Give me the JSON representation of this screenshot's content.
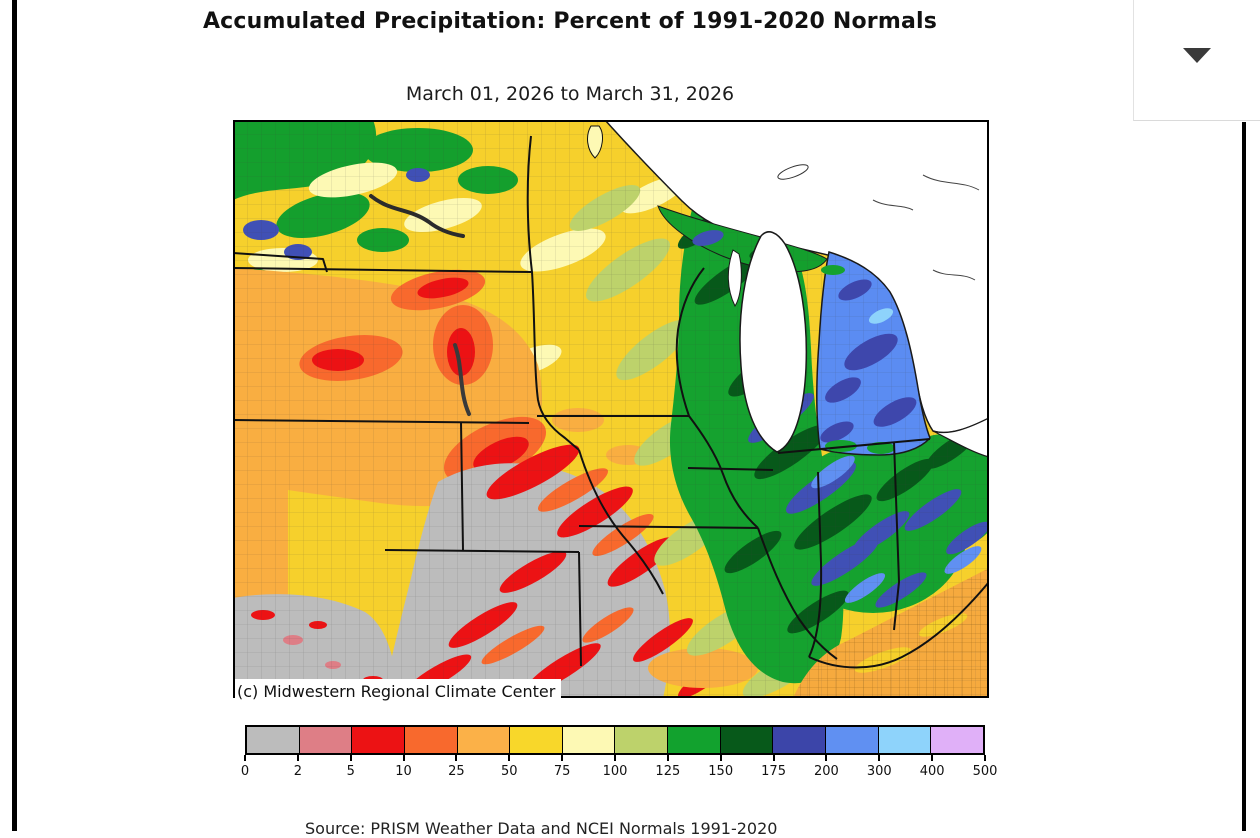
{
  "header": {
    "title": "Accumulated Precipitation: Percent of 1991-2020 Normals",
    "subtitle": "March 01, 2026 to March 31, 2026"
  },
  "map": {
    "attribution": "(c) Midwestern Regional Climate Center",
    "type": "choropleth",
    "region": "Midwestern United States and Great Lakes",
    "units": "percent of normal precipitation"
  },
  "legend": {
    "tick_labels": [
      "0",
      "2",
      "5",
      "10",
      "25",
      "50",
      "75",
      "100",
      "125",
      "150",
      "175",
      "200",
      "300",
      "400",
      "500"
    ],
    "colors": [
      "#bcbcbc",
      "#de7e86",
      "#ec1214",
      "#f8692d",
      "#fbb148",
      "#f8d72a",
      "#fdf9b4",
      "#bdd26b",
      "#12a22e",
      "#07591a",
      "#3c45a9",
      "#6090f2",
      "#8ed3fb",
      "#e0b0f8"
    ]
  },
  "footer": {
    "source": "Source: PRISM Weather Data and NCEI Normals 1991-2020"
  }
}
